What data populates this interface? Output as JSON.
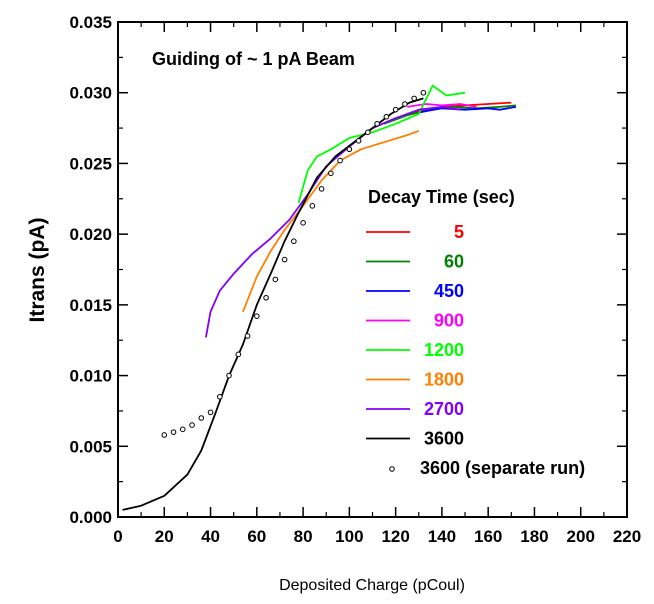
{
  "chart_data": {
    "type": "line",
    "title": "Guiding of ~ 1 pA Beam",
    "xlabel": "Deposited Charge (pCoul)",
    "ylabel": "Itrans (pA)",
    "xlim": [
      0,
      220
    ],
    "ylim": [
      0,
      0.035
    ],
    "x_ticks": [
      "0",
      "20",
      "40",
      "60",
      "80",
      "100",
      "120",
      "140",
      "160",
      "180",
      "200",
      "220"
    ],
    "y_ticks": [
      "0.000",
      "0.005",
      "0.010",
      "0.015",
      "0.020",
      "0.025",
      "0.030",
      "0.035"
    ],
    "legend_title": "Decay Time (sec)",
    "legend_position": "lower-right",
    "grid": false,
    "series": [
      {
        "name": "5",
        "color": "#ff0000",
        "style": "line",
        "x": [
          110,
          120,
          130,
          140,
          150,
          160,
          170
        ],
        "y": [
          0.0275,
          0.0282,
          0.0287,
          0.029,
          0.0291,
          0.0292,
          0.0293
        ]
      },
      {
        "name": "60",
        "color": "#008000",
        "style": "line",
        "x": [
          115,
          125,
          135,
          145,
          155,
          165,
          172
        ],
        "y": [
          0.0278,
          0.0284,
          0.0288,
          0.029,
          0.0289,
          0.029,
          0.0291
        ]
      },
      {
        "name": "450",
        "color": "#0000ff",
        "style": "line",
        "x": [
          130,
          140,
          150,
          160,
          165,
          172
        ],
        "y": [
          0.0286,
          0.0289,
          0.0288,
          0.0289,
          0.0288,
          0.029
        ]
      },
      {
        "name": "900",
        "color": "#ff00ff",
        "style": "line",
        "x": [
          125,
          133,
          140,
          148,
          155
        ],
        "y": [
          0.029,
          0.0292,
          0.0291,
          0.0292,
          0.029
        ]
      },
      {
        "name": "1200",
        "color": "#00ff00",
        "style": "line",
        "x": [
          78,
          82,
          86,
          92,
          100,
          110,
          120,
          130,
          136,
          142,
          150
        ],
        "y": [
          0.0222,
          0.0245,
          0.0255,
          0.026,
          0.0268,
          0.0272,
          0.0278,
          0.0285,
          0.0305,
          0.0298,
          0.03
        ]
      },
      {
        "name": "1800",
        "color": "#ff8000",
        "style": "line",
        "x": [
          54,
          60,
          66,
          72,
          80,
          88,
          96,
          105,
          115,
          125,
          130
        ],
        "y": [
          0.0145,
          0.017,
          0.0188,
          0.0203,
          0.022,
          0.0238,
          0.0252,
          0.026,
          0.0265,
          0.027,
          0.0273
        ]
      },
      {
        "name": "2700",
        "color": "#8000ff",
        "style": "line",
        "x": [
          38,
          40,
          44,
          50,
          58,
          66,
          74,
          82,
          90,
          100,
          110,
          120,
          130,
          140,
          148
        ],
        "y": [
          0.0127,
          0.0145,
          0.016,
          0.0172,
          0.0186,
          0.0197,
          0.021,
          0.0228,
          0.0248,
          0.0262,
          0.0275,
          0.0282,
          0.0288,
          0.029,
          0.0288
        ]
      },
      {
        "name": "3600",
        "color": "#000000",
        "style": "line",
        "x": [
          2,
          10,
          20,
          30,
          36,
          42,
          48,
          54,
          60,
          66,
          72,
          78,
          86,
          94,
          102,
          110,
          118,
          126,
          132
        ],
        "y": [
          0.0005,
          0.0008,
          0.0015,
          0.003,
          0.0047,
          0.0073,
          0.01,
          0.0122,
          0.015,
          0.0172,
          0.0195,
          0.0215,
          0.024,
          0.0255,
          0.0265,
          0.0275,
          0.0285,
          0.0293,
          0.0296
        ]
      },
      {
        "name": "3600  (separate run)",
        "color": "#000000",
        "style": "marker",
        "x": [
          20,
          24,
          28,
          32,
          36,
          40,
          44,
          48,
          52,
          56,
          60,
          64,
          68,
          72,
          76,
          80,
          84,
          88,
          92,
          96,
          100,
          104,
          108,
          112,
          116,
          120,
          124,
          128,
          132
        ],
        "y": [
          0.0058,
          0.006,
          0.0062,
          0.0065,
          0.007,
          0.0074,
          0.0085,
          0.01,
          0.0115,
          0.0128,
          0.0142,
          0.0155,
          0.0168,
          0.0182,
          0.0195,
          0.0208,
          0.022,
          0.0232,
          0.0243,
          0.0252,
          0.026,
          0.0266,
          0.0272,
          0.0278,
          0.0283,
          0.0288,
          0.0292,
          0.0296,
          0.03
        ]
      }
    ]
  }
}
